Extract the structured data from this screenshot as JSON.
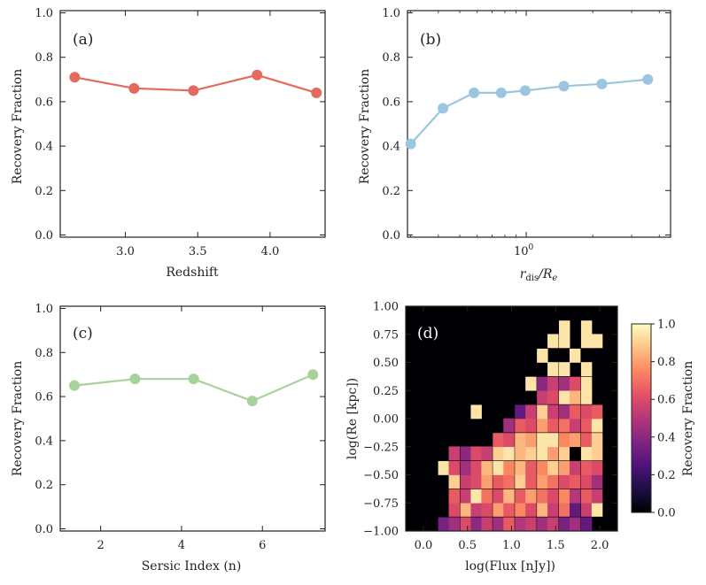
{
  "chart_data": [
    {
      "type": "line",
      "panel_label": "(a)",
      "xlabel": "Redshift",
      "ylabel": "Recovery Fraction",
      "xlim": [
        2.55,
        4.38
      ],
      "ylim": [
        -0.01,
        1.01
      ],
      "xticks": [
        3.0,
        3.5,
        4.0
      ],
      "xtick_labels": [
        "3.0",
        "3.5",
        "4.0"
      ],
      "yticks": [
        0.0,
        0.2,
        0.4,
        0.6,
        0.8,
        1.0
      ],
      "ytick_labels": [
        "0.0",
        "0.2",
        "0.4",
        "0.6",
        "0.8",
        "1.0"
      ],
      "color": "#e36a5c",
      "x": [
        2.65,
        3.06,
        3.47,
        3.91,
        4.32
      ],
      "y": [
        0.71,
        0.66,
        0.65,
        0.72,
        0.64
      ]
    },
    {
      "type": "line",
      "panel_label": "(b)",
      "xlabel": "r_dis/R_e",
      "xlabel_main": "r",
      "xlabel_sub1": "dis",
      "xlabel_mid": "/R",
      "xlabel_sub2": "e",
      "ylabel": "Recovery Fraction",
      "xscale": "log",
      "xlim": [
        0.29,
        4.5
      ],
      "ylim": [
        -0.01,
        1.01
      ],
      "xticks": [
        1.0
      ],
      "xtick_labels": [
        "10",
        "0"
      ],
      "yticks": [
        0.0,
        0.2,
        0.4,
        0.6,
        0.8,
        1.0
      ],
      "ytick_labels": [
        "0.0",
        "0.2",
        "0.4",
        "0.6",
        "0.8",
        "1.0"
      ],
      "color": "#9cc5df",
      "x": [
        0.3,
        0.42,
        0.58,
        0.77,
        0.99,
        1.48,
        2.2,
        3.55
      ],
      "y": [
        0.41,
        0.57,
        0.64,
        0.64,
        0.65,
        0.67,
        0.68,
        0.7
      ]
    },
    {
      "type": "line",
      "panel_label": "(c)",
      "xlabel": "Sersic Index (n)",
      "ylabel": "Recovery Fraction",
      "xlim": [
        1.0,
        7.55
      ],
      "ylim": [
        -0.01,
        1.01
      ],
      "xticks": [
        2,
        4,
        6
      ],
      "xtick_labels": [
        "2",
        "4",
        "6"
      ],
      "yticks": [
        0.0,
        0.2,
        0.4,
        0.6,
        0.8,
        1.0
      ],
      "ytick_labels": [
        "0.0",
        "0.2",
        "0.4",
        "0.6",
        "0.8",
        "1.0"
      ],
      "color": "#a7d39a",
      "x": [
        1.35,
        2.85,
        4.3,
        5.75,
        7.25
      ],
      "y": [
        0.65,
        0.68,
        0.68,
        0.58,
        0.7
      ]
    },
    {
      "type": "heatmap",
      "panel_label": "(d)",
      "xlabel": "log(Flux [nJy])",
      "ylabel": "log(Re [kpc])",
      "colorbar_label": "Recovery Fraction",
      "xlim": [
        -0.2,
        2.2
      ],
      "ylim": [
        -1.0,
        1.0
      ],
      "xticks": [
        0.0,
        0.5,
        1.0,
        1.5,
        2.0
      ],
      "xtick_labels": [
        "0.0",
        "0.5",
        "1.0",
        "1.5",
        "2.0"
      ],
      "yticks": [
        -1.0,
        -0.75,
        -0.5,
        -0.25,
        0.0,
        0.25,
        0.5,
        0.75,
        1.0
      ],
      "ytick_labels": [
        "−1.00",
        "−0.75",
        "−0.50",
        "−0.25",
        "0.00",
        "0.25",
        "0.50",
        "0.75",
        "1.00"
      ],
      "colorbar_ticks": [
        0.0,
        0.2,
        0.4,
        0.6,
        0.8,
        1.0
      ],
      "colorbar_tick_labels": [
        "0.0",
        "0.2",
        "0.4",
        "0.6",
        "0.8",
        "1.0"
      ],
      "vmin": 0.0,
      "vmax": 1.0,
      "colormap": "magma",
      "background": "#000004",
      "cells": [
        [
          0.23,
          -0.94,
          0.35
        ],
        [
          0.35,
          -0.94,
          0.45
        ],
        [
          0.48,
          -0.94,
          0.6
        ],
        [
          0.6,
          -0.94,
          0.4
        ],
        [
          0.72,
          -0.94,
          0.55
        ],
        [
          0.85,
          -0.94,
          0.45
        ],
        [
          0.97,
          -0.94,
          0.65
        ],
        [
          1.1,
          -0.94,
          0.5
        ],
        [
          1.22,
          -0.94,
          0.55
        ],
        [
          1.35,
          -0.94,
          0.45
        ],
        [
          1.47,
          -0.94,
          0.55
        ],
        [
          1.6,
          -0.94,
          0.35
        ],
        [
          1.72,
          -0.94,
          0.45
        ],
        [
          1.85,
          -0.94,
          0.3
        ],
        [
          0.35,
          -0.81,
          0.6
        ],
        [
          0.48,
          -0.81,
          0.85
        ],
        [
          0.6,
          -0.81,
          0.55
        ],
        [
          0.72,
          -0.81,
          0.6
        ],
        [
          0.85,
          -0.81,
          0.8
        ],
        [
          0.97,
          -0.81,
          0.65
        ],
        [
          1.1,
          -0.81,
          0.75
        ],
        [
          1.22,
          -0.81,
          0.6
        ],
        [
          1.35,
          -0.81,
          0.85
        ],
        [
          1.47,
          -0.81,
          0.55
        ],
        [
          1.6,
          -0.81,
          0.7
        ],
        [
          1.72,
          -0.81,
          0.3
        ],
        [
          1.85,
          -0.81,
          0.55
        ],
        [
          1.97,
          -0.81,
          0.95
        ],
        [
          0.35,
          -0.69,
          0.65
        ],
        [
          0.48,
          -0.69,
          0.55
        ],
        [
          0.6,
          -0.69,
          0.95
        ],
        [
          0.72,
          -0.69,
          0.7
        ],
        [
          0.85,
          -0.69,
          0.6
        ],
        [
          0.97,
          -0.69,
          0.85
        ],
        [
          1.1,
          -0.69,
          0.65
        ],
        [
          1.22,
          -0.69,
          0.8
        ],
        [
          1.35,
          -0.69,
          0.7
        ],
        [
          1.47,
          -0.69,
          0.6
        ],
        [
          1.6,
          -0.69,
          0.75
        ],
        [
          1.72,
          -0.69,
          0.5
        ],
        [
          1.85,
          -0.69,
          0.65
        ],
        [
          1.97,
          -0.69,
          0.55
        ],
        [
          0.35,
          -0.56,
          0.9
        ],
        [
          0.48,
          -0.56,
          0.55
        ],
        [
          0.6,
          -0.56,
          0.6
        ],
        [
          0.72,
          -0.56,
          0.8
        ],
        [
          0.85,
          -0.56,
          0.65
        ],
        [
          0.97,
          -0.56,
          0.7
        ],
        [
          1.1,
          -0.56,
          0.9
        ],
        [
          1.22,
          -0.56,
          0.65
        ],
        [
          1.35,
          -0.56,
          0.8
        ],
        [
          1.47,
          -0.56,
          0.7
        ],
        [
          1.6,
          -0.56,
          0.6
        ],
        [
          1.72,
          -0.56,
          0.65
        ],
        [
          1.85,
          -0.56,
          0.6
        ],
        [
          1.97,
          -0.56,
          0.45
        ],
        [
          0.23,
          -0.44,
          0.95
        ],
        [
          0.35,
          -0.44,
          0.6
        ],
        [
          0.48,
          -0.44,
          0.45
        ],
        [
          0.6,
          -0.44,
          0.6
        ],
        [
          0.72,
          -0.44,
          0.85
        ],
        [
          0.85,
          -0.44,
          0.95
        ],
        [
          0.97,
          -0.44,
          0.75
        ],
        [
          1.1,
          -0.44,
          0.85
        ],
        [
          1.22,
          -0.44,
          0.65
        ],
        [
          1.35,
          -0.44,
          0.75
        ],
        [
          1.47,
          -0.44,
          0.9
        ],
        [
          1.6,
          -0.44,
          0.8
        ],
        [
          1.72,
          -0.44,
          0.55
        ],
        [
          1.85,
          -0.44,
          0.65
        ],
        [
          1.97,
          -0.44,
          0.6
        ],
        [
          0.35,
          -0.31,
          0.55
        ],
        [
          0.48,
          -0.31,
          0.4
        ],
        [
          0.6,
          -0.31,
          0.6
        ],
        [
          0.72,
          -0.31,
          0.55
        ],
        [
          0.85,
          -0.31,
          0.9
        ],
        [
          0.97,
          -0.31,
          0.95
        ],
        [
          1.1,
          -0.31,
          0.85
        ],
        [
          1.22,
          -0.31,
          0.9
        ],
        [
          1.35,
          -0.31,
          0.95
        ],
        [
          1.47,
          -0.31,
          0.8
        ],
        [
          1.6,
          -0.31,
          0.9
        ],
        [
          1.72,
          -0.31,
          0.0
        ],
        [
          1.85,
          -0.31,
          0.95
        ],
        [
          1.97,
          -0.31,
          0.9
        ],
        [
          0.85,
          -0.19,
          0.65
        ],
        [
          0.97,
          -0.19,
          0.6
        ],
        [
          1.1,
          -0.19,
          0.85
        ],
        [
          1.22,
          -0.19,
          0.8
        ],
        [
          1.35,
          -0.19,
          0.95
        ],
        [
          1.47,
          -0.19,
          0.95
        ],
        [
          1.6,
          -0.19,
          0.75
        ],
        [
          1.72,
          -0.19,
          0.8
        ],
        [
          1.85,
          -0.19,
          0.65
        ],
        [
          1.97,
          -0.19,
          0.9
        ],
        [
          0.97,
          -0.06,
          0.45
        ],
        [
          1.1,
          -0.06,
          0.65
        ],
        [
          1.22,
          -0.06,
          0.6
        ],
        [
          1.35,
          -0.06,
          0.8
        ],
        [
          1.47,
          -0.06,
          0.65
        ],
        [
          1.6,
          -0.06,
          0.7
        ],
        [
          1.72,
          -0.06,
          0.55
        ],
        [
          1.85,
          -0.06,
          0.65
        ],
        [
          1.97,
          -0.06,
          0.95
        ],
        [
          0.6,
          0.06,
          0.95
        ],
        [
          1.1,
          0.06,
          0.3
        ],
        [
          1.22,
          0.06,
          0.55
        ],
        [
          1.35,
          0.06,
          0.9
        ],
        [
          1.47,
          0.06,
          0.55
        ],
        [
          1.6,
          0.06,
          0.45
        ],
        [
          1.72,
          0.06,
          0.65
        ],
        [
          1.85,
          0.06,
          0.6
        ],
        [
          1.97,
          0.06,
          0.65
        ],
        [
          1.35,
          0.19,
          0.55
        ],
        [
          1.47,
          0.19,
          0.6
        ],
        [
          1.6,
          0.19,
          0.95
        ],
        [
          1.72,
          0.19,
          0.85
        ],
        [
          1.85,
          0.19,
          0.95
        ],
        [
          1.22,
          0.31,
          0.95
        ],
        [
          1.35,
          0.31,
          0.4
        ],
        [
          1.47,
          0.31,
          0.55
        ],
        [
          1.6,
          0.31,
          0.45
        ],
        [
          1.72,
          0.31,
          0.6
        ],
        [
          1.85,
          0.31,
          0.95
        ],
        [
          1.47,
          0.44,
          0.95
        ],
        [
          1.6,
          0.44,
          0.95
        ],
        [
          1.85,
          0.44,
          0.95
        ],
        [
          1.35,
          0.56,
          0.95
        ],
        [
          1.72,
          0.56,
          0.95
        ],
        [
          1.47,
          0.69,
          0.95
        ],
        [
          1.6,
          0.69,
          0.95
        ],
        [
          1.85,
          0.69,
          0.95
        ],
        [
          1.97,
          0.69,
          0.95
        ],
        [
          1.6,
          0.81,
          0.95
        ],
        [
          1.85,
          0.81,
          0.95
        ]
      ]
    }
  ]
}
